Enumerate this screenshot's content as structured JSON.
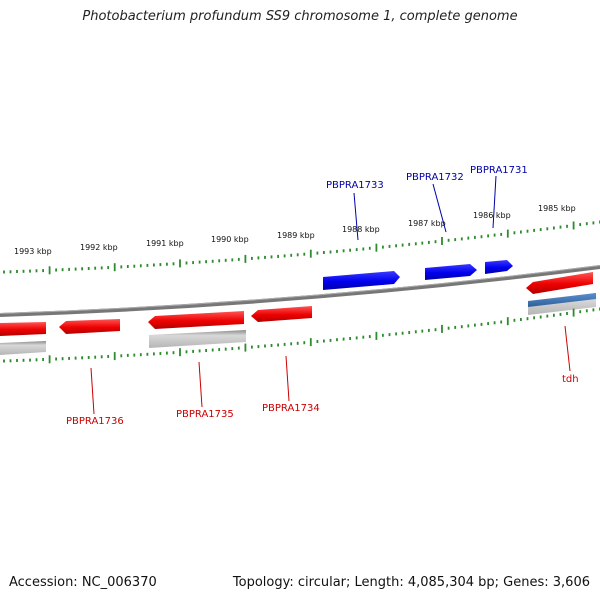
{
  "title": "Photobacterium profundum SS9 chromosome 1, complete genome",
  "footer": {
    "accession": "Accession: NC_006370",
    "summary": "Topology: circular; Length: 4,085,304 bp; Genes: 3,606"
  },
  "colors": {
    "backbone": "#888888",
    "tick": "#2e8b2e",
    "forward_gene": "#0000ee",
    "reverse_gene": "#ee0000",
    "forward_label": "#0000aa",
    "reverse_label": "#cc0000",
    "other_feature": "#c0c0c0",
    "rna_feature": "#3f7fbf"
  },
  "scale_labels": [
    "1993 kbp",
    "1992 kbp",
    "1991 kbp",
    "1990 kbp",
    "1989 kbp",
    "1988 kbp",
    "1987 kbp",
    "1986 kbp",
    "1985 kbp"
  ],
  "genes_forward": [
    {
      "label": "PBPRA1733"
    },
    {
      "label": "PBPRA1732"
    },
    {
      "label": "PBPRA1731"
    }
  ],
  "genes_reverse": [
    {
      "label": "PBPRA1736"
    },
    {
      "label": "PBPRA1735"
    },
    {
      "label": "PBPRA1734"
    },
    {
      "label": "tdh"
    }
  ]
}
